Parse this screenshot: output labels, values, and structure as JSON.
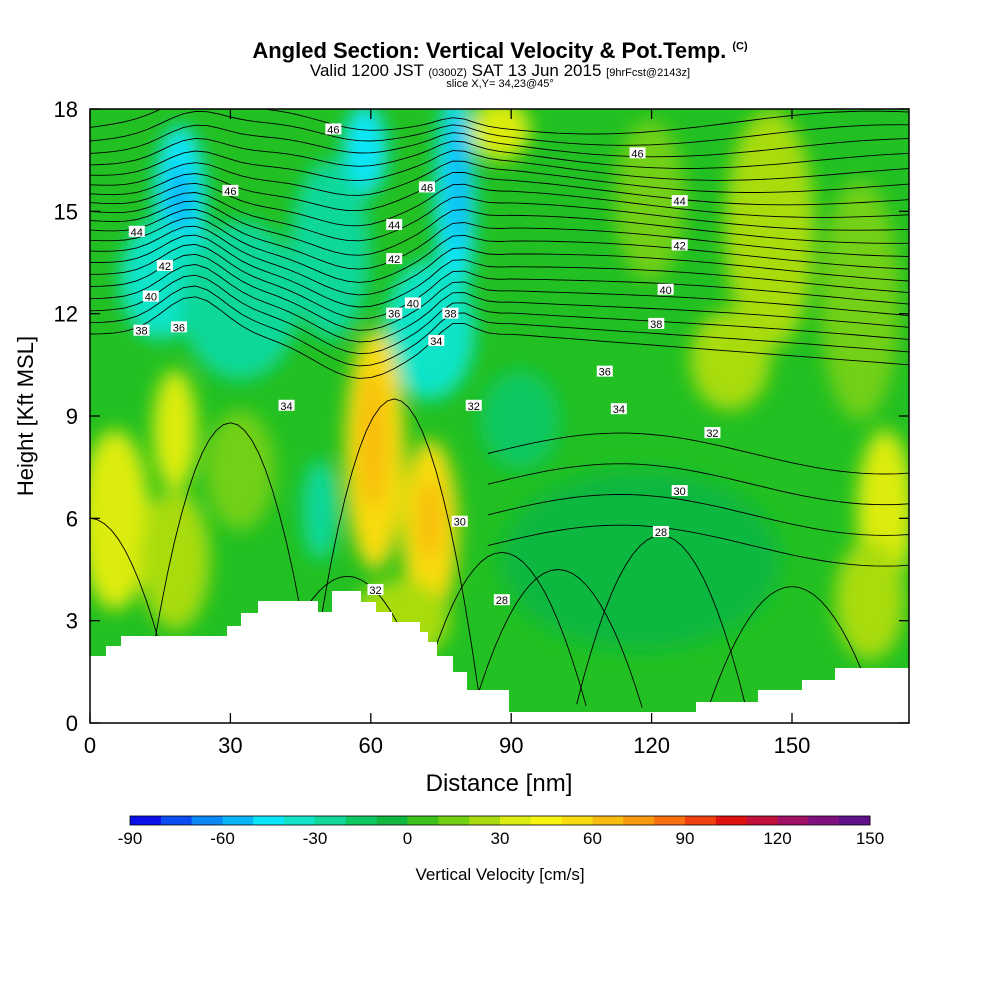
{
  "header": {
    "title": "Angled Section: Vertical Velocity & Pot.Temp.",
    "copyright": "(C)",
    "valid_prefix": "Valid 1200 JST",
    "valid_utc": "(0300Z)",
    "valid_date": "SAT 13 Jun 2015",
    "forecast": "[9hrFcst@2143z]",
    "slice": "slice X,Y= 34,23@45°"
  },
  "chart_data": {
    "type": "heatmap",
    "xlabel": "Distance [nm]",
    "ylabel": "Height [Kft MSL]",
    "xlim": [
      0,
      175
    ],
    "ylim": [
      0,
      18
    ],
    "xticks": [
      0,
      30,
      60,
      90,
      120,
      150
    ],
    "yticks": [
      0,
      3,
      6,
      9,
      12,
      15,
      18
    ],
    "colorbar": {
      "label": "Vertical Velocity [cm/s]",
      "range": [
        -90,
        150
      ],
      "step": 10,
      "ticks": [
        -90,
        -60,
        -30,
        0,
        30,
        60,
        90,
        120,
        150
      ],
      "colors": [
        "#0a10e8",
        "#0a4cf2",
        "#0a88f6",
        "#08b6f8",
        "#08e6f8",
        "#10e4c8",
        "#10d89a",
        "#10c860",
        "#10b840",
        "#3cc21a",
        "#72d012",
        "#a8dc10",
        "#dcec10",
        "#f6f410",
        "#f8dc10",
        "#f8bc10",
        "#f89a10",
        "#f87010",
        "#f04010",
        "#e01010",
        "#c0103c",
        "#a01066",
        "#80107e",
        "#601088"
      ]
    },
    "isentrope_labels": [
      {
        "text": "46",
        "x": 52,
        "y": 17.4
      },
      {
        "text": "46",
        "x": 30,
        "y": 15.6
      },
      {
        "text": "46",
        "x": 72,
        "y": 15.7
      },
      {
        "text": "46",
        "x": 117,
        "y": 16.7
      },
      {
        "text": "44",
        "x": 10,
        "y": 14.4
      },
      {
        "text": "44",
        "x": 65,
        "y": 14.6
      },
      {
        "text": "44",
        "x": 126,
        "y": 15.3
      },
      {
        "text": "42",
        "x": 16,
        "y": 13.4
      },
      {
        "text": "42",
        "x": 65,
        "y": 13.6
      },
      {
        "text": "42",
        "x": 126,
        "y": 14.0
      },
      {
        "text": "40",
        "x": 13,
        "y": 12.5
      },
      {
        "text": "40",
        "x": 69,
        "y": 12.3
      },
      {
        "text": "40",
        "x": 123,
        "y": 12.7
      },
      {
        "text": "38",
        "x": 11,
        "y": 11.5
      },
      {
        "text": "38",
        "x": 77,
        "y": 12.0
      },
      {
        "text": "38",
        "x": 121,
        "y": 11.7
      },
      {
        "text": "36",
        "x": 19,
        "y": 11.6
      },
      {
        "text": "36",
        "x": 65,
        "y": 12.0
      },
      {
        "text": "36",
        "x": 110,
        "y": 10.3
      },
      {
        "text": "34",
        "x": 42,
        "y": 9.3
      },
      {
        "text": "34",
        "x": 74,
        "y": 11.2
      },
      {
        "text": "34",
        "x": 113,
        "y": 9.2
      },
      {
        "text": "32",
        "x": 82,
        "y": 9.3
      },
      {
        "text": "32",
        "x": 133,
        "y": 8.5
      },
      {
        "text": "32",
        "x": 61,
        "y": 3.9
      },
      {
        "text": "30",
        "x": 79,
        "y": 5.9
      },
      {
        "text": "30",
        "x": 126,
        "y": 6.8
      },
      {
        "text": "28",
        "x": 88,
        "y": 3.6
      },
      {
        "text": "28",
        "x": 122,
        "y": 5.6
      }
    ]
  }
}
